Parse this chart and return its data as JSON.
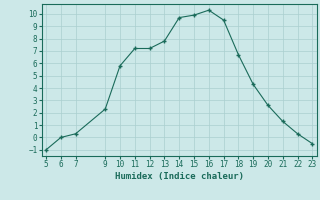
{
  "xlabel": "Humidex (Indice chaleur)",
  "x": [
    5,
    6,
    7,
    9,
    10,
    11,
    12,
    13,
    14,
    15,
    16,
    17,
    18,
    19,
    20,
    21,
    22,
    23
  ],
  "y": [
    -1,
    0,
    0.3,
    2.3,
    5.8,
    7.2,
    7.2,
    7.8,
    9.7,
    9.9,
    10.3,
    9.5,
    6.7,
    4.3,
    2.6,
    1.3,
    0.3,
    -0.5
  ],
  "line_color": "#1a6b5a",
  "marker": "+",
  "bg_color": "#cce8e8",
  "grid_color": "#aacfcf",
  "xlim": [
    4.7,
    23.3
  ],
  "ylim": [
    -1.5,
    10.8
  ],
  "xticks": [
    5,
    6,
    7,
    9,
    10,
    11,
    12,
    13,
    14,
    15,
    16,
    17,
    18,
    19,
    20,
    21,
    22,
    23
  ],
  "yticks": [
    -1,
    0,
    1,
    2,
    3,
    4,
    5,
    6,
    7,
    8,
    9,
    10
  ],
  "tick_fontsize": 5.5,
  "label_fontsize": 6.5
}
